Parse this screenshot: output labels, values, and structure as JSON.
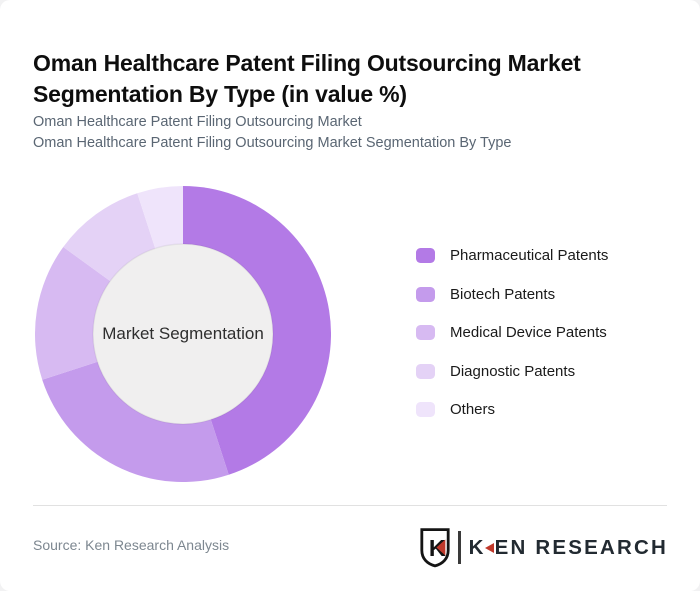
{
  "page": {
    "title": "Oman Healthcare Patent Filing Outsourcing Market Segmentation By Type (in value %)",
    "subtitle_line1": "Oman Healthcare Patent Filing Outsourcing Market",
    "subtitle_line2": "Oman Healthcare Patent Filing Outsourcing Market Segmentation By Type"
  },
  "chart_data": {
    "type": "pie",
    "donut": true,
    "title": "Oman Healthcare Patent Filing Outsourcing Market Segmentation By Type (in value %)",
    "center_label": "Market Segmentation",
    "unit": "value %",
    "categories": [
      "Pharmaceutical Patents",
      "Biotech Patents",
      "Medical Device Patents",
      "Diagnostic Patents",
      "Others"
    ],
    "values": [
      45,
      25,
      15,
      10,
      5
    ],
    "colors": [
      "#b37ae6",
      "#c49bec",
      "#d7baf2",
      "#e4d2f6",
      "#efe4fb"
    ],
    "hole_color": "#f0efef",
    "inner_radius_ratio": 0.608,
    "start_angle_deg": 0,
    "direction": "clockwise",
    "legend_position": "right"
  },
  "footer": {
    "source": "Source: Ken Research Analysis",
    "logo": {
      "shield_letter": "K",
      "brand_first_letter": "K",
      "brand_rest": "EN RESEARCH",
      "accent_red": "#c0392b",
      "ink": "#222a31"
    }
  }
}
